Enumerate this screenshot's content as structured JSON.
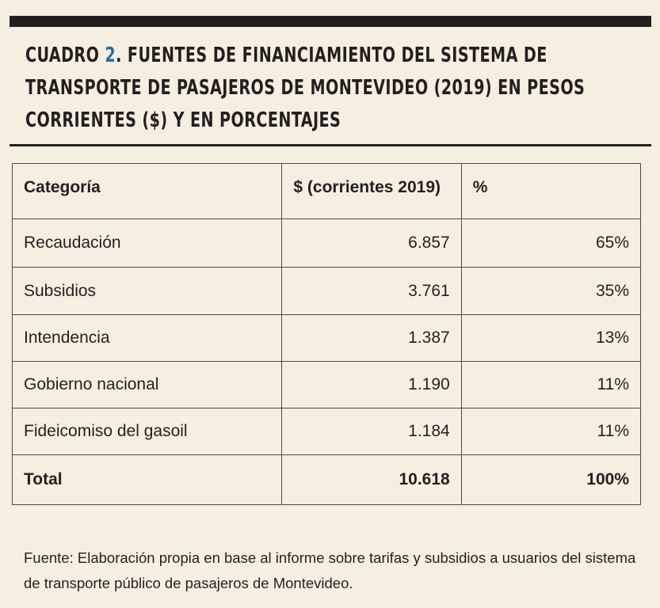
{
  "title": {
    "prefix": "CUADRO ",
    "number": "2",
    "text": ". FUENTES DE FINANCIAMIENTO DEL SISTEMA DE TRANSPORTE DE PASAJEROS DE MONTEVIDEO (2019) EN PESOS CORRIENTES ($) Y EN PORCENTAJES"
  },
  "colors": {
    "background": "#f5efe2",
    "text": "#231f20",
    "accent_number": "#2c6f9b"
  },
  "table": {
    "headers": {
      "category": "Categoría",
      "value": "$ (corrientes 2019)",
      "percent": "%"
    },
    "rows": [
      {
        "category": "Recaudación",
        "value": "6.857",
        "percent": "65%"
      },
      {
        "category": "Subsidios",
        "value": "3.761",
        "percent": "35%"
      },
      {
        "category": "Intendencia",
        "value": "1.387",
        "percent": "13%"
      },
      {
        "category": "Gobierno nacional",
        "value": "1.190",
        "percent": "11%"
      },
      {
        "category": "Fideicomiso del gasoil",
        "value": "1.184",
        "percent": "11%"
      }
    ],
    "total": {
      "category": "Total",
      "value": "10.618",
      "percent": "100%"
    }
  },
  "source": "Fuente: Elaboración propia en base al informe sobre tarifas y subsidios a usuarios del sistema de transporte público de pasajeros de Montevideo."
}
